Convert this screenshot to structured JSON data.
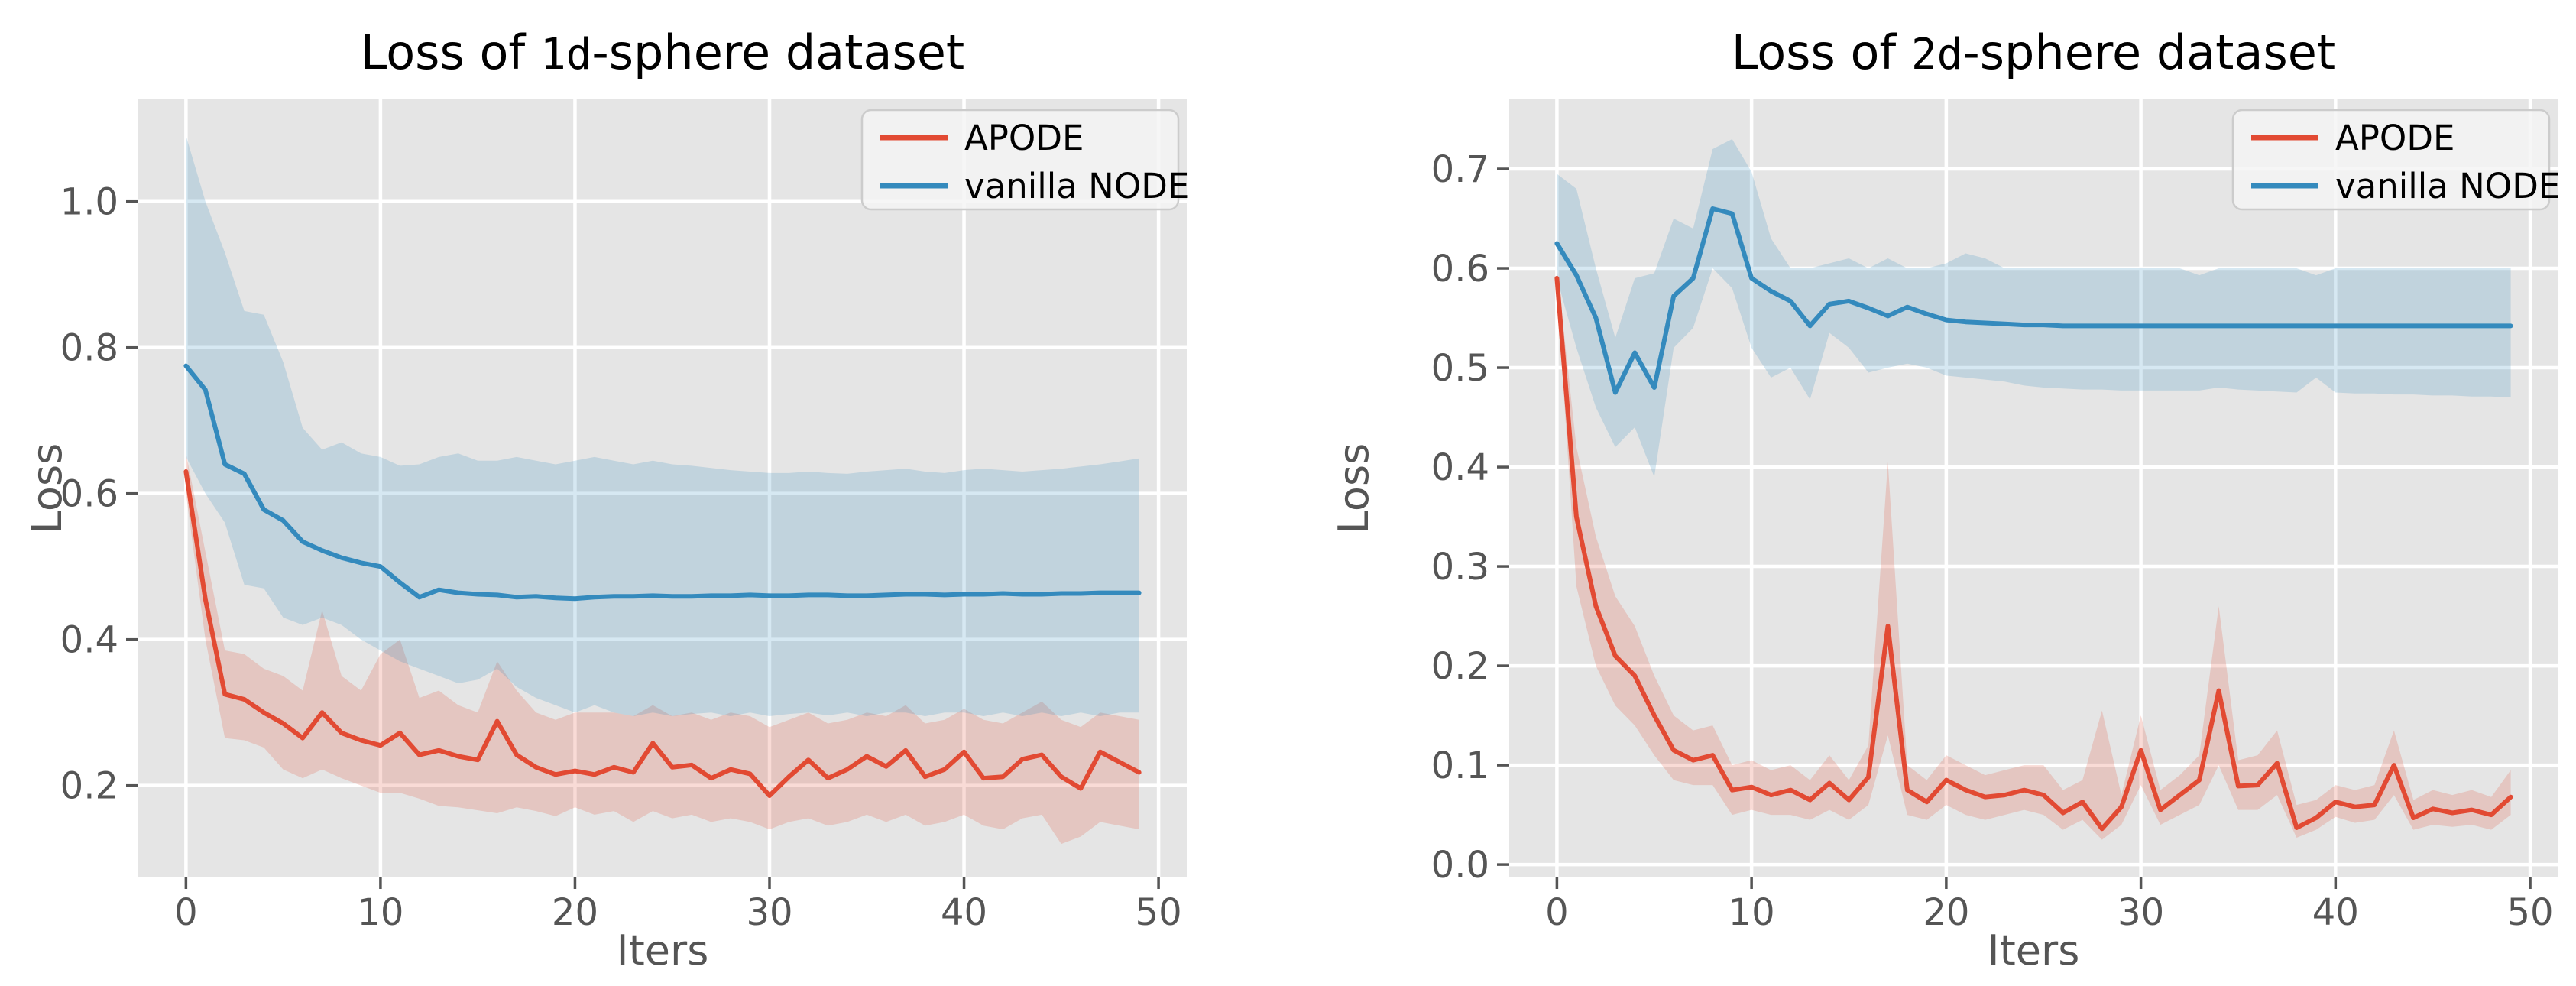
{
  "figure": {
    "background": "#ffffff",
    "kind": "matplotlib ggplot-style line charts with confidence bands"
  },
  "style": {
    "accent_red": "#E24A33",
    "accent_blue": "#348ABD",
    "plot_bg": "#E5E5E5",
    "grid_color": "#FFFFFF",
    "tick_color": "#555555",
    "title_color": "#000000",
    "band_opacity": 0.2,
    "legend_bg": "#F2F2F2",
    "legend_border": "#CCCCCC"
  },
  "legend": {
    "items": [
      {
        "label": "APODE",
        "color": "#E24A33"
      },
      {
        "label": "vanilla NODE",
        "color": "#348ABD"
      }
    ],
    "position": "upper right"
  },
  "chart_data": [
    {
      "type": "line",
      "title": "Loss of 1d-sphere dataset",
      "title_prefix": "Loss of ",
      "title_mono": "1d",
      "title_suffix": "-sphere dataset",
      "xlabel": "Iters",
      "ylabel": "Loss",
      "grid": true,
      "legend_position": "upper right",
      "xlim": [
        -2.45,
        51.45
      ],
      "ylim": [
        0.074,
        1.14
      ],
      "x_ticks": [
        0,
        10,
        20,
        30,
        40,
        50
      ],
      "x_tick_labels": [
        "0",
        "10",
        "20",
        "30",
        "40",
        "50"
      ],
      "y_ticks": [
        0.2,
        0.4,
        0.6,
        0.8,
        1.0
      ],
      "y_tick_labels": [
        "0.2",
        "0.4",
        "0.6",
        "0.8",
        "1.0"
      ],
      "x": [
        0,
        1,
        2,
        3,
        4,
        5,
        6,
        7,
        8,
        9,
        10,
        11,
        12,
        13,
        14,
        15,
        16,
        17,
        18,
        19,
        20,
        21,
        22,
        23,
        24,
        25,
        26,
        27,
        28,
        29,
        30,
        31,
        32,
        33,
        34,
        35,
        36,
        37,
        38,
        39,
        40,
        41,
        42,
        43,
        44,
        45,
        46,
        47,
        48,
        49
      ],
      "series": [
        {
          "name": "APODE",
          "color": "#E24A33",
          "values": [
            0.63,
            0.455,
            0.325,
            0.318,
            0.3,
            0.285,
            0.265,
            0.3,
            0.272,
            0.262,
            0.255,
            0.272,
            0.242,
            0.248,
            0.24,
            0.235,
            0.288,
            0.242,
            0.225,
            0.215,
            0.22,
            0.215,
            0.225,
            0.218,
            0.258,
            0.225,
            0.228,
            0.21,
            0.222,
            0.216,
            0.186,
            0.212,
            0.235,
            0.21,
            0.222,
            0.24,
            0.226,
            0.248,
            0.212,
            0.222,
            0.246,
            0.21,
            0.212,
            0.236,
            0.242,
            0.212,
            0.196,
            0.246,
            0.232,
            0.218
          ],
          "band_lower": [
            0.6,
            0.4,
            0.265,
            0.262,
            0.252,
            0.222,
            0.21,
            0.222,
            0.21,
            0.2,
            0.19,
            0.19,
            0.182,
            0.172,
            0.17,
            0.166,
            0.162,
            0.17,
            0.165,
            0.158,
            0.17,
            0.16,
            0.165,
            0.15,
            0.165,
            0.155,
            0.16,
            0.15,
            0.155,
            0.15,
            0.14,
            0.15,
            0.155,
            0.145,
            0.15,
            0.16,
            0.15,
            0.16,
            0.145,
            0.15,
            0.16,
            0.145,
            0.14,
            0.155,
            0.16,
            0.12,
            0.13,
            0.15,
            0.145,
            0.14
          ],
          "band_upper": [
            0.655,
            0.52,
            0.385,
            0.38,
            0.36,
            0.35,
            0.33,
            0.44,
            0.35,
            0.33,
            0.38,
            0.4,
            0.32,
            0.33,
            0.31,
            0.3,
            0.37,
            0.33,
            0.3,
            0.29,
            0.3,
            0.3,
            0.3,
            0.295,
            0.31,
            0.295,
            0.3,
            0.29,
            0.3,
            0.295,
            0.28,
            0.29,
            0.3,
            0.285,
            0.29,
            0.3,
            0.295,
            0.31,
            0.285,
            0.29,
            0.305,
            0.29,
            0.285,
            0.3,
            0.315,
            0.29,
            0.28,
            0.3,
            0.295,
            0.29
          ]
        },
        {
          "name": "vanilla NODE",
          "color": "#348ABD",
          "values": [
            0.775,
            0.742,
            0.64,
            0.627,
            0.578,
            0.563,
            0.534,
            0.522,
            0.512,
            0.505,
            0.5,
            0.478,
            0.458,
            0.468,
            0.464,
            0.462,
            0.461,
            0.458,
            0.459,
            0.457,
            0.456,
            0.458,
            0.459,
            0.459,
            0.46,
            0.459,
            0.459,
            0.46,
            0.46,
            0.461,
            0.46,
            0.46,
            0.461,
            0.461,
            0.46,
            0.46,
            0.461,
            0.462,
            0.462,
            0.461,
            0.462,
            0.462,
            0.463,
            0.462,
            0.462,
            0.463,
            0.463,
            0.464,
            0.464,
            0.464
          ],
          "band_lower": [
            0.65,
            0.6,
            0.56,
            0.475,
            0.47,
            0.43,
            0.42,
            0.43,
            0.42,
            0.4,
            0.385,
            0.37,
            0.36,
            0.35,
            0.34,
            0.345,
            0.36,
            0.335,
            0.32,
            0.31,
            0.3,
            0.31,
            0.3,
            0.295,
            0.3,
            0.295,
            0.298,
            0.3,
            0.295,
            0.3,
            0.295,
            0.298,
            0.3,
            0.296,
            0.3,
            0.295,
            0.3,
            0.3,
            0.295,
            0.3,
            0.3,
            0.295,
            0.3,
            0.295,
            0.3,
            0.295,
            0.3,
            0.295,
            0.3,
            0.3
          ],
          "band_upper": [
            1.09,
            1.0,
            0.93,
            0.85,
            0.845,
            0.78,
            0.69,
            0.66,
            0.67,
            0.655,
            0.65,
            0.638,
            0.64,
            0.65,
            0.655,
            0.645,
            0.645,
            0.65,
            0.645,
            0.64,
            0.645,
            0.65,
            0.645,
            0.64,
            0.645,
            0.64,
            0.638,
            0.635,
            0.632,
            0.63,
            0.628,
            0.628,
            0.63,
            0.628,
            0.627,
            0.63,
            0.632,
            0.634,
            0.63,
            0.628,
            0.632,
            0.634,
            0.632,
            0.63,
            0.632,
            0.634,
            0.637,
            0.64,
            0.644,
            0.648
          ]
        }
      ]
    },
    {
      "type": "line",
      "title": "Loss of 2d-sphere dataset",
      "title_prefix": "Loss of ",
      "title_mono": "2d",
      "title_suffix": "-sphere dataset",
      "xlabel": "Iters",
      "ylabel": "Loss",
      "grid": true,
      "legend_position": "upper right",
      "xlim": [
        -2.45,
        51.45
      ],
      "ylim": [
        -0.013,
        0.77
      ],
      "x_ticks": [
        0,
        10,
        20,
        30,
        40,
        50
      ],
      "x_tick_labels": [
        "0",
        "10",
        "20",
        "30",
        "40",
        "50"
      ],
      "y_ticks": [
        0.0,
        0.1,
        0.2,
        0.3,
        0.4,
        0.5,
        0.6,
        0.7
      ],
      "y_tick_labels": [
        "0.0",
        "0.1",
        "0.2",
        "0.3",
        "0.4",
        "0.5",
        "0.6",
        "0.7"
      ],
      "x": [
        0,
        1,
        2,
        3,
        4,
        5,
        6,
        7,
        8,
        9,
        10,
        11,
        12,
        13,
        14,
        15,
        16,
        17,
        18,
        19,
        20,
        21,
        22,
        23,
        24,
        25,
        26,
        27,
        28,
        29,
        30,
        31,
        32,
        33,
        34,
        35,
        36,
        37,
        38,
        39,
        40,
        41,
        42,
        43,
        44,
        45,
        46,
        47,
        48,
        49
      ],
      "series": [
        {
          "name": "APODE",
          "color": "#E24A33",
          "values": [
            0.59,
            0.35,
            0.26,
            0.21,
            0.19,
            0.15,
            0.115,
            0.105,
            0.11,
            0.075,
            0.078,
            0.07,
            0.075,
            0.065,
            0.082,
            0.065,
            0.088,
            0.24,
            0.075,
            0.063,
            0.085,
            0.075,
            0.068,
            0.07,
            0.075,
            0.07,
            0.052,
            0.063,
            0.036,
            0.058,
            0.115,
            0.055,
            0.07,
            0.085,
            0.175,
            0.079,
            0.08,
            0.102,
            0.037,
            0.047,
            0.063,
            0.058,
            0.06,
            0.1,
            0.047,
            0.056,
            0.052,
            0.055,
            0.05,
            0.068
          ],
          "band_lower": [
            0.58,
            0.28,
            0.2,
            0.16,
            0.14,
            0.11,
            0.085,
            0.08,
            0.08,
            0.05,
            0.055,
            0.05,
            0.05,
            0.045,
            0.055,
            0.045,
            0.06,
            0.13,
            0.05,
            0.045,
            0.06,
            0.05,
            0.045,
            0.05,
            0.055,
            0.05,
            0.035,
            0.045,
            0.025,
            0.04,
            0.08,
            0.04,
            0.05,
            0.06,
            0.1,
            0.055,
            0.055,
            0.07,
            0.027,
            0.035,
            0.048,
            0.042,
            0.045,
            0.07,
            0.035,
            0.04,
            0.038,
            0.04,
            0.035,
            0.05
          ],
          "band_upper": [
            0.6,
            0.42,
            0.33,
            0.27,
            0.24,
            0.19,
            0.15,
            0.135,
            0.14,
            0.1,
            0.105,
            0.095,
            0.1,
            0.085,
            0.11,
            0.085,
            0.12,
            0.405,
            0.1,
            0.085,
            0.11,
            0.1,
            0.09,
            0.095,
            0.1,
            0.1,
            0.075,
            0.085,
            0.155,
            0.07,
            0.15,
            0.075,
            0.09,
            0.11,
            0.26,
            0.105,
            0.11,
            0.135,
            0.06,
            0.065,
            0.08,
            0.075,
            0.08,
            0.135,
            0.065,
            0.075,
            0.07,
            0.075,
            0.068,
            0.095
          ]
        },
        {
          "name": "vanilla NODE",
          "color": "#348ABD",
          "values": [
            0.625,
            0.593,
            0.55,
            0.475,
            0.515,
            0.48,
            0.572,
            0.59,
            0.66,
            0.655,
            0.59,
            0.577,
            0.567,
            0.542,
            0.564,
            0.567,
            0.56,
            0.552,
            0.561,
            0.554,
            0.548,
            0.546,
            0.545,
            0.544,
            0.543,
            0.543,
            0.542,
            0.542,
            0.542,
            0.542,
            0.542,
            0.542,
            0.542,
            0.542,
            0.542,
            0.542,
            0.542,
            0.542,
            0.542,
            0.542,
            0.542,
            0.542,
            0.542,
            0.542,
            0.542,
            0.542,
            0.542,
            0.542,
            0.542,
            0.542
          ],
          "band_lower": [
            0.59,
            0.52,
            0.46,
            0.42,
            0.44,
            0.39,
            0.52,
            0.54,
            0.6,
            0.58,
            0.52,
            0.49,
            0.5,
            0.468,
            0.535,
            0.52,
            0.495,
            0.5,
            0.504,
            0.5,
            0.492,
            0.49,
            0.488,
            0.486,
            0.482,
            0.48,
            0.479,
            0.478,
            0.478,
            0.477,
            0.477,
            0.477,
            0.477,
            0.477,
            0.48,
            0.478,
            0.477,
            0.476,
            0.475,
            0.49,
            0.475,
            0.474,
            0.474,
            0.473,
            0.473,
            0.472,
            0.472,
            0.471,
            0.471,
            0.47
          ],
          "band_upper": [
            0.695,
            0.68,
            0.6,
            0.53,
            0.59,
            0.595,
            0.65,
            0.64,
            0.72,
            0.73,
            0.697,
            0.63,
            0.6,
            0.6,
            0.605,
            0.61,
            0.6,
            0.61,
            0.6,
            0.6,
            0.605,
            0.615,
            0.61,
            0.6,
            0.6,
            0.6,
            0.6,
            0.6,
            0.6,
            0.6,
            0.6,
            0.6,
            0.6,
            0.593,
            0.6,
            0.6,
            0.6,
            0.6,
            0.6,
            0.593,
            0.6,
            0.6,
            0.6,
            0.6,
            0.6,
            0.6,
            0.6,
            0.6,
            0.6,
            0.6
          ]
        }
      ]
    }
  ]
}
